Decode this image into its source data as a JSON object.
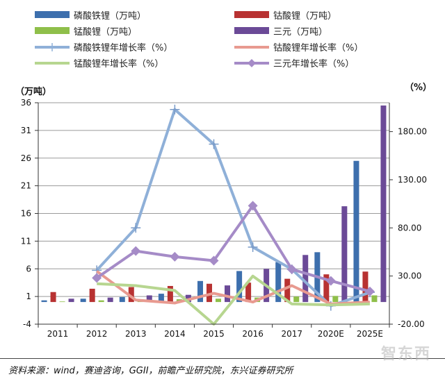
{
  "chart_data": {
    "type": "bar+line",
    "categories": [
      "2011",
      "2012",
      "2013",
      "2014",
      "2015",
      "2016",
      "2017",
      "2020E",
      "2025E"
    ],
    "left_axis": {
      "label": "（万吨）",
      "ticks": [
        "-4",
        "1",
        "6",
        "11",
        "16",
        "21",
        "26",
        "31",
        "36"
      ],
      "ylim": [
        -4,
        36
      ]
    },
    "right_axis": {
      "label": "（%）",
      "ticks": [
        "-20.00",
        "30.00",
        "80.00",
        "130.00",
        "180.00"
      ],
      "ylim": [
        -20,
        210
      ]
    },
    "bar_series": [
      {
        "name": "磷酸铁锂（万吨）",
        "color": "#3d6fad",
        "values": [
          0.3,
          0.6,
          0.9,
          1.5,
          3.8,
          5.6,
          7.2,
          9.0,
          25.5
        ]
      },
      {
        "name": "钴酸锂（万吨）",
        "color": "#b83232",
        "values": [
          1.8,
          2.4,
          2.7,
          2.9,
          3.3,
          3.5,
          4.2,
          5.0,
          5.5
        ]
      },
      {
        "name": "锰酸锂（万吨）",
        "color": "#8fbf4a",
        "values": [
          0.1,
          0.3,
          0.4,
          0.5,
          0.6,
          0.8,
          1.0,
          1.1,
          1.2
        ]
      },
      {
        "name": "三元（万吨）",
        "color": "#6b4a97",
        "values": [
          0.6,
          0.8,
          1.2,
          1.3,
          3.0,
          6.0,
          8.5,
          17.3,
          35.5
        ]
      }
    ],
    "line_series": [
      {
        "name": "磷酸铁锂年增长率（%）",
        "color": "#8fb0d8",
        "marker": "plus",
        "values": [
          null,
          36,
          80,
          203,
          167,
          60,
          37,
          -1,
          13
        ]
      },
      {
        "name": "钴酸锂年增长率（%）",
        "color": "#e89a90",
        "marker": "none",
        "values": [
          null,
          35,
          5,
          2,
          12,
          3,
          20,
          1,
          3
        ]
      },
      {
        "name": "锰酸锂年增长率（%）",
        "color": "#b7d690",
        "marker": "none",
        "values": [
          null,
          22,
          20,
          15,
          -20,
          30,
          1,
          0,
          1
        ]
      },
      {
        "name": "三元年增长率（%）",
        "color": "#a58bc7",
        "marker": "diamond",
        "values": [
          null,
          28,
          56,
          50,
          46,
          103,
          37,
          25,
          14
        ]
      }
    ],
    "grid": "horizontal"
  },
  "source": "资料来源：wind，赛迪咨询，GGII，前瞻产业研究院，东兴证券研究所",
  "watermark": "智东西"
}
